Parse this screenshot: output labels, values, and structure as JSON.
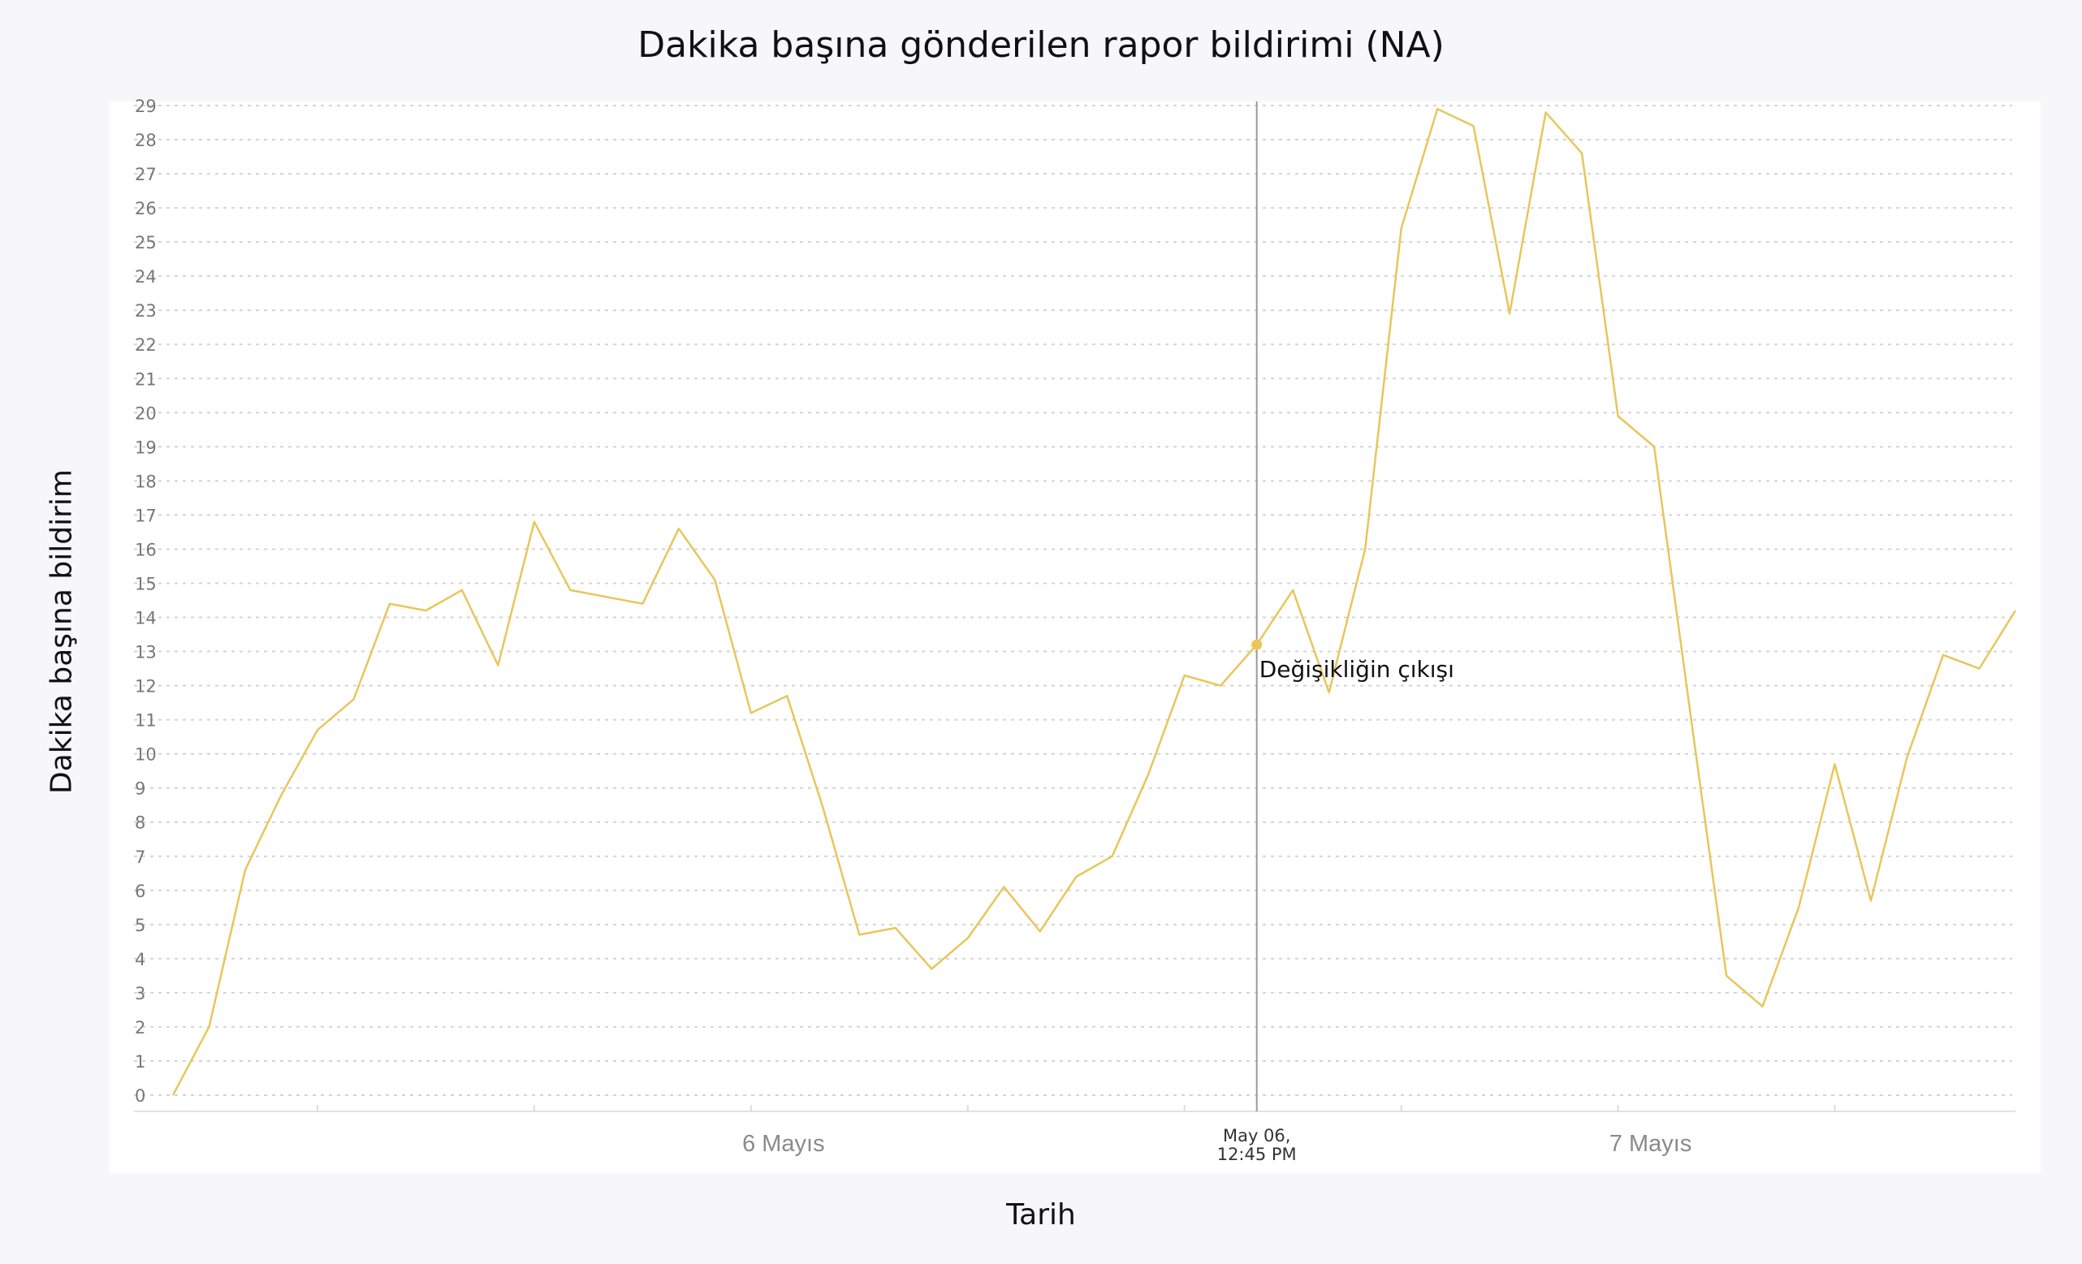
{
  "chart_data": {
    "type": "line",
    "title": "Dakika başına gönderilen rapor bildirimi (NA)",
    "xlabel": "Tarih",
    "ylabel": "Dakika başına bildirim",
    "ylim": [
      0,
      29
    ],
    "yticks": [
      0,
      1,
      2,
      3,
      4,
      5,
      6,
      7,
      8,
      9,
      10,
      11,
      12,
      13,
      14,
      15,
      16,
      17,
      18,
      19,
      20,
      21,
      22,
      23,
      24,
      25,
      26,
      27,
      28,
      29
    ],
    "grid": true,
    "line_color": "#e8c65a",
    "x_tick_labels": [
      {
        "label": "6 Mayıs",
        "index": 16
      },
      {
        "label": "7 Mayıs",
        "index": 40
      }
    ],
    "marker": {
      "index": 30,
      "label_line1": "May 06,",
      "label_line2": "12:45 PM",
      "annotation": "Değişikliğin çıkışı"
    },
    "series": [
      {
        "values": [
          0.0,
          2.0,
          6.6,
          8.8,
          10.7,
          11.6,
          14.4,
          14.2,
          14.8,
          12.6,
          16.8,
          14.8,
          14.6,
          14.4,
          16.6,
          15.1,
          11.2,
          11.7,
          8.4,
          4.7,
          4.9,
          3.7,
          4.6,
          6.1,
          4.8,
          6.4,
          7.0,
          9.4,
          12.3,
          12.0,
          13.2,
          14.8,
          11.8,
          16.0,
          25.4,
          28.9,
          28.4,
          22.9,
          28.8,
          27.6,
          19.9,
          19.0,
          11.2,
          3.5,
          2.6,
          5.5,
          9.7,
          5.7,
          9.9,
          12.9,
          12.5,
          14.2
        ]
      }
    ]
  }
}
